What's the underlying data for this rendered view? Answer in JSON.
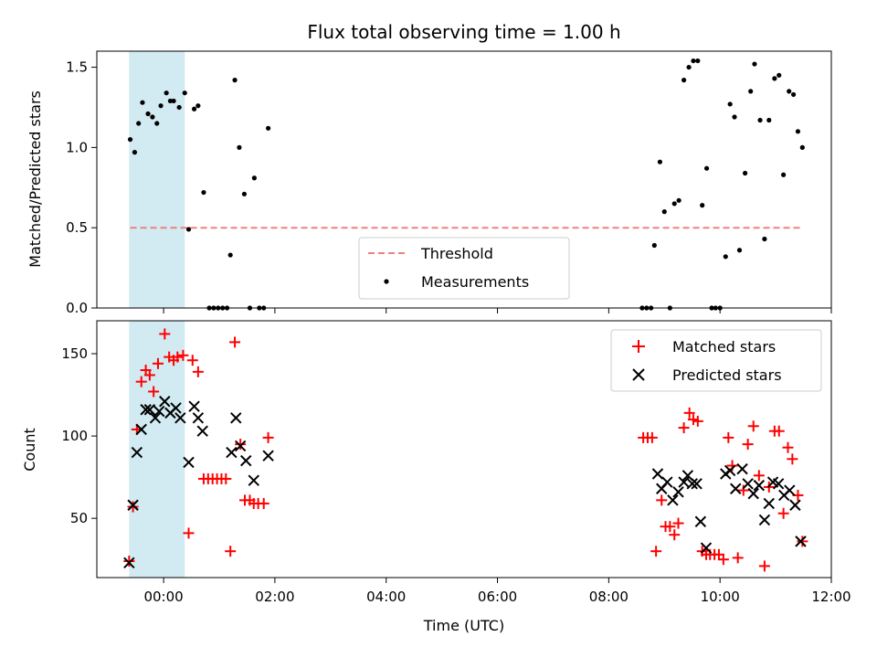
{
  "chart_data": {
    "title": "Flux total observing time = 1.00 h",
    "xlabel": "Time (UTC)",
    "x_ticks": [
      "00:00",
      "02:00",
      "04:00",
      "06:00",
      "08:00",
      "10:00",
      "12:00"
    ],
    "xlim_hours": [
      -1.2,
      12.0
    ],
    "highlight_span_hours": [
      -0.62,
      0.38
    ],
    "highlight_color": "#add8e6",
    "panels": [
      {
        "type": "scatter",
        "ylabel": "Matched/Predicted stars",
        "ylim": [
          0,
          1.6
        ],
        "y_ticks": [
          "0.0",
          "0.5",
          "1.0",
          "1.5"
        ],
        "threshold": {
          "name": "Threshold",
          "value": 0.5,
          "x_range": [
            -0.6,
            11.5
          ],
          "color": "#f08080"
        },
        "legend": {
          "position": "lower-center",
          "entries": [
            "Threshold",
            "Measurements"
          ]
        },
        "series": [
          {
            "name": "Measurements",
            "color": "#000000",
            "marker": "dot",
            "points": [
              [
                -0.6,
                1.05
              ],
              [
                -0.52,
                0.97
              ],
              [
                -0.45,
                1.15
              ],
              [
                -0.38,
                1.28
              ],
              [
                -0.28,
                1.21
              ],
              [
                -0.2,
                1.19
              ],
              [
                -0.12,
                1.15
              ],
              [
                -0.05,
                1.26
              ],
              [
                0.05,
                1.34
              ],
              [
                0.12,
                1.29
              ],
              [
                0.18,
                1.29
              ],
              [
                0.28,
                1.25
              ],
              [
                0.38,
                1.34
              ],
              [
                0.45,
                0.49
              ],
              [
                0.55,
                1.24
              ],
              [
                0.62,
                1.26
              ],
              [
                0.72,
                0.72
              ],
              [
                0.82,
                0.0
              ],
              [
                0.9,
                0.0
              ],
              [
                0.98,
                0.0
              ],
              [
                1.06,
                0.0
              ],
              [
                1.14,
                0.0
              ],
              [
                1.2,
                0.33
              ],
              [
                1.28,
                1.42
              ],
              [
                1.36,
                1.0
              ],
              [
                1.45,
                0.71
              ],
              [
                1.55,
                0.0
              ],
              [
                1.63,
                0.81
              ],
              [
                1.72,
                0.0
              ],
              [
                1.8,
                0.0
              ],
              [
                1.88,
                1.12
              ],
              [
                8.6,
                0.0
              ],
              [
                8.68,
                0.0
              ],
              [
                8.76,
                0.0
              ],
              [
                8.82,
                0.39
              ],
              [
                8.92,
                0.91
              ],
              [
                9.0,
                0.6
              ],
              [
                9.1,
                0.0
              ],
              [
                9.18,
                0.65
              ],
              [
                9.26,
                0.67
              ],
              [
                9.35,
                1.42
              ],
              [
                9.44,
                1.5
              ],
              [
                9.52,
                1.54
              ],
              [
                9.6,
                1.54
              ],
              [
                9.68,
                0.64
              ],
              [
                9.76,
                0.87
              ],
              [
                9.85,
                0.0
              ],
              [
                9.92,
                0.0
              ],
              [
                10.0,
                0.0
              ],
              [
                10.1,
                0.32
              ],
              [
                10.18,
                1.27
              ],
              [
                10.26,
                1.19
              ],
              [
                10.35,
                0.36
              ],
              [
                10.45,
                0.84
              ],
              [
                10.55,
                1.35
              ],
              [
                10.62,
                1.52
              ],
              [
                10.72,
                1.17
              ],
              [
                10.8,
                0.43
              ],
              [
                10.88,
                1.17
              ],
              [
                10.98,
                1.43
              ],
              [
                11.06,
                1.45
              ],
              [
                11.14,
                0.83
              ],
              [
                11.24,
                1.35
              ],
              [
                11.32,
                1.33
              ],
              [
                11.4,
                1.1
              ],
              [
                11.48,
                1.0
              ]
            ]
          }
        ]
      },
      {
        "type": "scatter",
        "ylabel": "Count",
        "ylim": [
          14,
          170
        ],
        "y_ticks": [
          "50",
          "100",
          "150"
        ],
        "legend": {
          "position": "top-right",
          "entries": [
            "Matched stars",
            "Predicted stars"
          ]
        },
        "series": [
          {
            "name": "Matched stars",
            "color": "#ff0000",
            "marker": "plus",
            "points": [
              [
                -0.62,
                24
              ],
              [
                -0.55,
                57
              ],
              [
                -0.48,
                104
              ],
              [
                -0.4,
                133
              ],
              [
                -0.32,
                140
              ],
              [
                -0.25,
                137
              ],
              [
                -0.18,
                127
              ],
              [
                -0.1,
                144
              ],
              [
                0.02,
                162
              ],
              [
                0.1,
                148
              ],
              [
                0.18,
                146
              ],
              [
                0.25,
                148
              ],
              [
                0.35,
                149
              ],
              [
                0.45,
                41
              ],
              [
                0.52,
                146
              ],
              [
                0.62,
                139
              ],
              [
                0.72,
                74
              ],
              [
                0.8,
                74
              ],
              [
                0.88,
                74
              ],
              [
                0.96,
                74
              ],
              [
                1.04,
                74
              ],
              [
                1.12,
                74
              ],
              [
                1.2,
                30
              ],
              [
                1.28,
                157
              ],
              [
                1.38,
                95
              ],
              [
                1.46,
                61
              ],
              [
                1.55,
                61
              ],
              [
                1.62,
                59
              ],
              [
                1.7,
                59
              ],
              [
                1.8,
                59
              ],
              [
                1.88,
                99
              ],
              [
                8.62,
                99
              ],
              [
                8.7,
                99
              ],
              [
                8.78,
                99
              ],
              [
                8.85,
                30
              ],
              [
                8.95,
                61
              ],
              [
                9.02,
                45
              ],
              [
                9.1,
                45
              ],
              [
                9.18,
                40
              ],
              [
                9.25,
                47
              ],
              [
                9.35,
                105
              ],
              [
                9.45,
                114
              ],
              [
                9.52,
                110
              ],
              [
                9.6,
                109
              ],
              [
                9.68,
                30
              ],
              [
                9.75,
                28
              ],
              [
                9.82,
                28
              ],
              [
                9.9,
                28
              ],
              [
                9.98,
                28
              ],
              [
                10.06,
                25
              ],
              [
                10.15,
                99
              ],
              [
                10.22,
                82
              ],
              [
                10.32,
                26
              ],
              [
                10.42,
                67
              ],
              [
                10.5,
                95
              ],
              [
                10.6,
                106
              ],
              [
                10.7,
                76
              ],
              [
                10.8,
                21
              ],
              [
                10.88,
                69
              ],
              [
                10.98,
                103
              ],
              [
                11.06,
                103
              ],
              [
                11.14,
                53
              ],
              [
                11.22,
                93
              ],
              [
                11.3,
                86
              ],
              [
                11.4,
                64
              ],
              [
                11.48,
                36
              ]
            ]
          },
          {
            "name": "Predicted stars",
            "color": "#000000",
            "marker": "x",
            "points": [
              [
                -0.62,
                23
              ],
              [
                -0.55,
                58
              ],
              [
                -0.48,
                90
              ],
              [
                -0.4,
                104
              ],
              [
                -0.32,
                116
              ],
              [
                -0.25,
                116
              ],
              [
                -0.15,
                111
              ],
              [
                -0.08,
                115
              ],
              [
                0.02,
                121
              ],
              [
                0.12,
                114
              ],
              [
                0.22,
                117
              ],
              [
                0.3,
                111
              ],
              [
                0.45,
                84
              ],
              [
                0.55,
                118
              ],
              [
                0.62,
                111
              ],
              [
                0.7,
                103
              ],
              [
                1.22,
                90
              ],
              [
                1.3,
                111
              ],
              [
                1.38,
                94
              ],
              [
                1.48,
                85
              ],
              [
                1.62,
                73
              ],
              [
                1.88,
                88
              ],
              [
                8.88,
                77
              ],
              [
                8.95,
                68
              ],
              [
                9.05,
                72
              ],
              [
                9.15,
                61
              ],
              [
                9.25,
                66
              ],
              [
                9.35,
                72
              ],
              [
                9.42,
                76
              ],
              [
                9.5,
                71
              ],
              [
                9.58,
                71
              ],
              [
                9.65,
                48
              ],
              [
                9.75,
                32
              ],
              [
                10.1,
                77
              ],
              [
                10.18,
                79
              ],
              [
                10.28,
                68
              ],
              [
                10.4,
                80
              ],
              [
                10.5,
                71
              ],
              [
                10.6,
                65
              ],
              [
                10.7,
                70
              ],
              [
                10.8,
                49
              ],
              [
                10.88,
                59
              ],
              [
                10.95,
                72
              ],
              [
                11.05,
                71
              ],
              [
                11.15,
                64
              ],
              [
                11.25,
                67
              ],
              [
                11.35,
                58
              ],
              [
                11.45,
                36
              ]
            ]
          }
        ]
      }
    ]
  }
}
